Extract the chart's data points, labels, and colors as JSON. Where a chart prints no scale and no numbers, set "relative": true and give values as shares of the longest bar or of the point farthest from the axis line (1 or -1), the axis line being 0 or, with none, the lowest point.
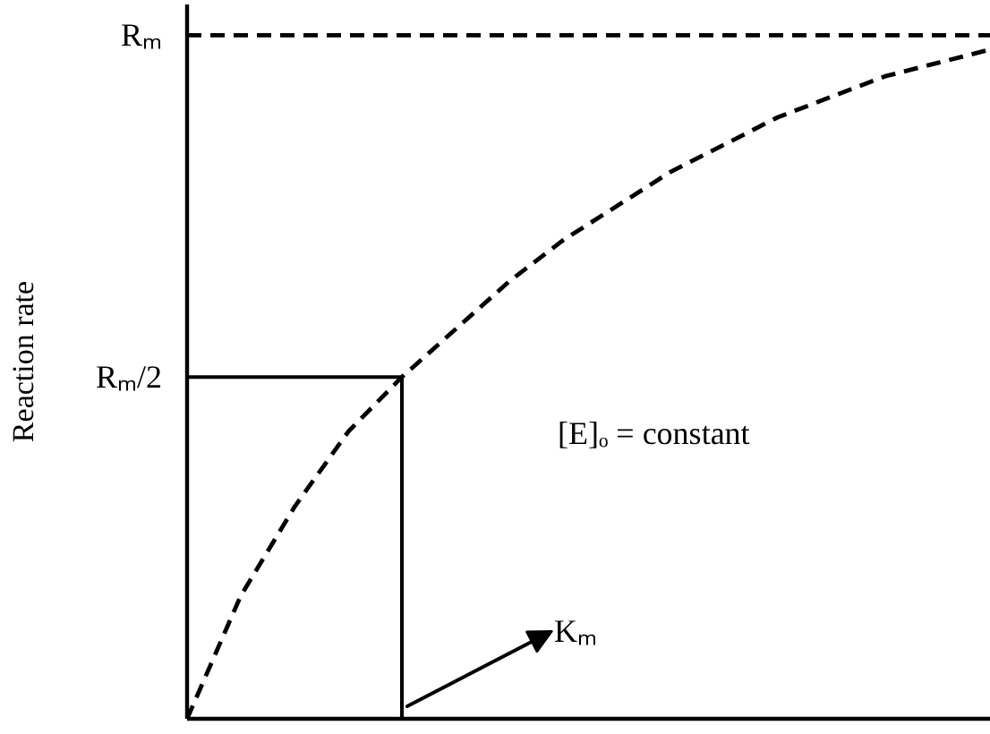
{
  "chart_data": {
    "type": "line",
    "relative": true,
    "ylabel": "Reaction rate",
    "categories": [
      null,
      null,
      null,
      null,
      null,
      null,
      null,
      null,
      null,
      null,
      null,
      null,
      null,
      null,
      null,
      null
    ],
    "series": [
      {
        "values": [
          0,
          0.18,
          0.31,
          0.42,
          0.5,
          0.57,
          0.64,
          0.7,
          0.75,
          0.8,
          0.84,
          0.88,
          0.91,
          0.94,
          0.96,
          0.98
        ],
        "color": "#000000",
        "line_style": "dashed"
      },
      {
        "name": "Rₘ",
        "values": [
          1,
          1,
          1,
          1,
          1,
          1,
          1,
          1,
          1,
          1,
          1,
          1,
          1,
          1,
          1,
          1
        ],
        "color": "#000000",
        "line_style": "dashed"
      }
    ],
    "ref_lines": [
      {
        "axis": "y",
        "value": 0.5,
        "label": "Rₘ/2",
        "color": "#000000",
        "line_style": "solid"
      }
    ],
    "annotations": [
      "[E]ₒ = constant",
      "Kₘ"
    ]
  }
}
